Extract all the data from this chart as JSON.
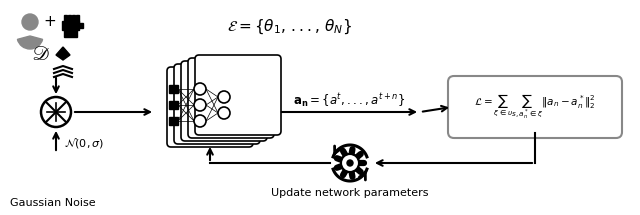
{
  "bg_color": "#ffffff",
  "figsize": [
    6.4,
    2.15
  ],
  "dpi": 100,
  "epsilon_label": "$\\mathcal{E} = \\{\\theta_1, \\, ..., \\, \\theta_N\\}$",
  "action_label": "$\\mathbf{a_n} = \\{a^t ,..., a^{t+n}\\}$",
  "loss_label": "$\\mathcal{L} = \\sum_{\\xi \\in \\upsilon} \\sum_{s,a_n^* \\in \\xi} \\|a_n - a_n^*\\|_2^2$",
  "gauss_label": "$\\mathcal{N}(0, \\sigma)$",
  "gaussian_noise_label": "Gaussian Noise",
  "update_label": "Update network parameters",
  "D_label": "$\\mathscr{D}$"
}
